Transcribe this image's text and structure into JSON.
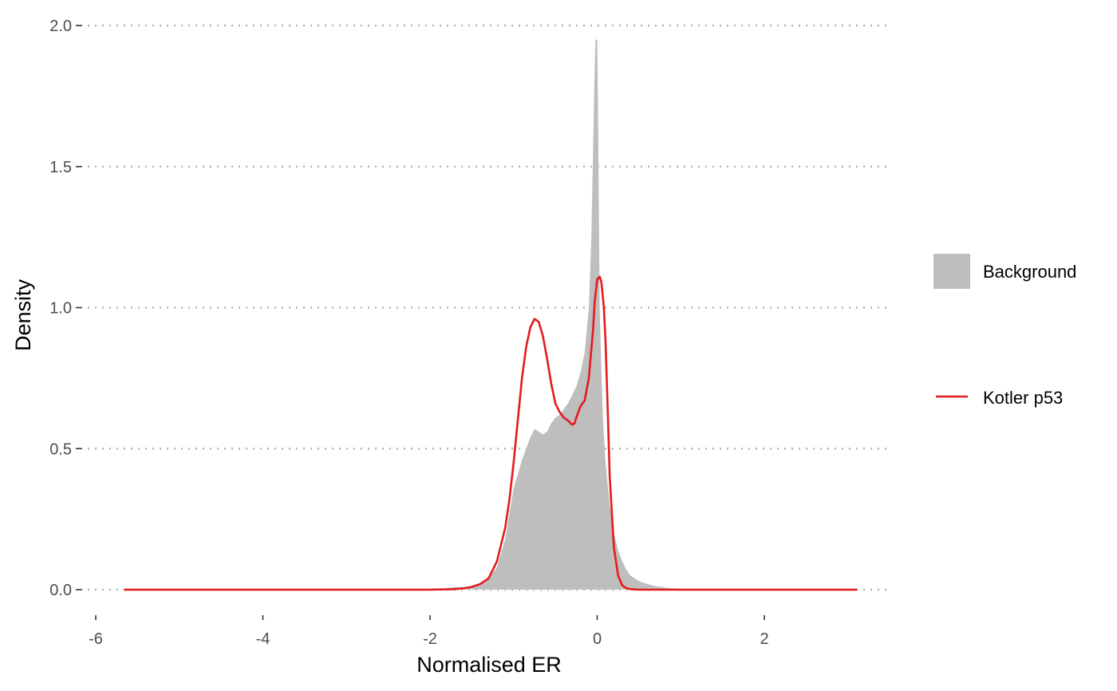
{
  "chart_data": {
    "type": "area",
    "title": "",
    "xlabel": "Normalised ER",
    "ylabel": "Density",
    "xlim": [
      -5.9,
      3.6
    ],
    "ylim": [
      -0.04,
      2.05
    ],
    "x_ticks": [
      -6,
      -4,
      -2,
      0,
      2
    ],
    "x_tick_labels": [
      "-6",
      "-4",
      "-2",
      "0",
      "2"
    ],
    "y_ticks": [
      0,
      0.5,
      1,
      1.5,
      2
    ],
    "y_tick_labels": [
      "0.0",
      "0.5",
      "1.0",
      "1.5",
      "2.0"
    ],
    "grid": "horizontal dotted",
    "legend_position": "right",
    "series": [
      {
        "name": "Background",
        "kind": "filled-density",
        "color": "#bebebe",
        "x": [
          -5.65,
          -2.0,
          -1.8,
          -1.7,
          -1.6,
          -1.5,
          -1.4,
          -1.3,
          -1.2,
          -1.1,
          -1.05,
          -1.0,
          -0.95,
          -0.9,
          -0.85,
          -0.8,
          -0.75,
          -0.7,
          -0.65,
          -0.6,
          -0.55,
          -0.5,
          -0.45,
          -0.4,
          -0.35,
          -0.3,
          -0.25,
          -0.2,
          -0.15,
          -0.1,
          -0.07,
          -0.05,
          -0.03,
          -0.02,
          0.0,
          0.01,
          0.02,
          0.03,
          0.05,
          0.07,
          0.1,
          0.15,
          0.2,
          0.25,
          0.3,
          0.35,
          0.4,
          0.5,
          0.6,
          0.7,
          0.8,
          0.9,
          1.0,
          1.2,
          1.5,
          2.0,
          3.1
        ],
        "y": [
          0.0,
          0.0,
          0.005,
          0.01,
          0.008,
          0.01,
          0.02,
          0.04,
          0.08,
          0.18,
          0.27,
          0.36,
          0.41,
          0.46,
          0.5,
          0.54,
          0.57,
          0.56,
          0.55,
          0.56,
          0.59,
          0.61,
          0.62,
          0.64,
          0.66,
          0.69,
          0.72,
          0.77,
          0.84,
          1.0,
          1.25,
          1.55,
          1.85,
          1.95,
          1.95,
          1.7,
          1.35,
          1.0,
          0.78,
          0.6,
          0.45,
          0.3,
          0.2,
          0.14,
          0.1,
          0.07,
          0.05,
          0.03,
          0.02,
          0.012,
          0.008,
          0.005,
          0.003,
          0.002,
          0.001,
          0.0,
          0.0
        ]
      },
      {
        "name": "Kotler p53",
        "kind": "density-line",
        "color": "#e41a1c",
        "x": [
          -5.65,
          -2.0,
          -1.7,
          -1.6,
          -1.5,
          -1.4,
          -1.3,
          -1.2,
          -1.1,
          -1.05,
          -1.0,
          -0.95,
          -0.9,
          -0.85,
          -0.8,
          -0.75,
          -0.7,
          -0.65,
          -0.6,
          -0.55,
          -0.5,
          -0.45,
          -0.4,
          -0.35,
          -0.3,
          -0.27,
          -0.25,
          -0.2,
          -0.15,
          -0.1,
          -0.05,
          -0.03,
          0.0,
          0.03,
          0.05,
          0.08,
          0.1,
          0.13,
          0.15,
          0.2,
          0.25,
          0.3,
          0.35,
          0.4,
          0.5,
          0.7,
          1.0,
          2.0,
          3.1
        ],
        "y": [
          0.0,
          0.0,
          0.002,
          0.005,
          0.01,
          0.02,
          0.04,
          0.1,
          0.22,
          0.32,
          0.45,
          0.6,
          0.75,
          0.86,
          0.93,
          0.96,
          0.95,
          0.9,
          0.82,
          0.73,
          0.66,
          0.63,
          0.61,
          0.6,
          0.585,
          0.59,
          0.61,
          0.65,
          0.67,
          0.75,
          0.92,
          1.02,
          1.1,
          1.11,
          1.09,
          1.0,
          0.88,
          0.6,
          0.4,
          0.15,
          0.05,
          0.015,
          0.005,
          0.002,
          0.0,
          0.0,
          0.0,
          0.0,
          0.0
        ]
      }
    ]
  }
}
